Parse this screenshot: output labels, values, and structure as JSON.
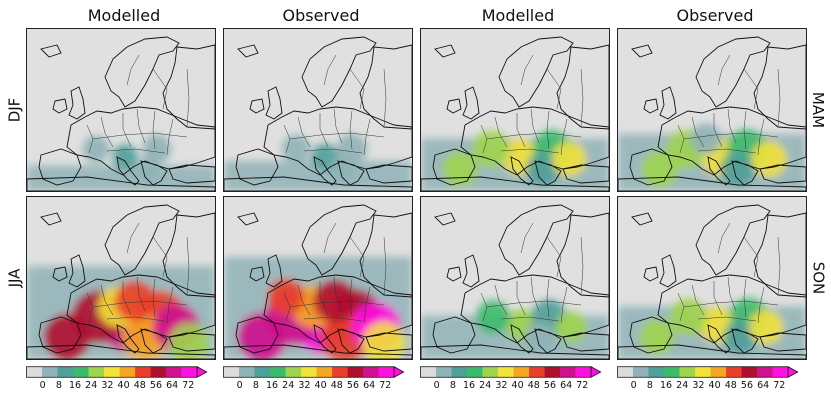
{
  "column_titles": [
    "Modelled",
    "Observed",
    "Modelled",
    "Observed"
  ],
  "row_labels": {
    "left_top": "DJF",
    "left_bottom": "JJA",
    "right_top": "MAM",
    "right_bottom": "SON"
  },
  "panels": [
    {
      "season": "DJF",
      "source": "Modelled",
      "intensity": 0.15
    },
    {
      "season": "DJF",
      "source": "Observed",
      "intensity": 0.2
    },
    {
      "season": "MAM",
      "source": "Modelled",
      "intensity": 0.45
    },
    {
      "season": "MAM",
      "source": "Observed",
      "intensity": 0.5
    },
    {
      "season": "JJA",
      "source": "Modelled",
      "intensity": 0.9
    },
    {
      "season": "JJA",
      "source": "Observed",
      "intensity": 1.0
    },
    {
      "season": "SON",
      "source": "Modelled",
      "intensity": 0.35
    },
    {
      "season": "SON",
      "source": "Observed",
      "intensity": 0.45
    }
  ],
  "colorbar": {
    "ticks": [
      "0",
      "8",
      "16",
      "24",
      "32",
      "40",
      "48",
      "56",
      "64",
      "72"
    ],
    "colors": [
      "#dcdcdc",
      "#8fb3b6",
      "#4f9f9a",
      "#3dbb6c",
      "#9fd44e",
      "#f2e23a",
      "#f5a623",
      "#e8402a",
      "#b01030",
      "#d0108f",
      "#ff10e0"
    ]
  }
}
